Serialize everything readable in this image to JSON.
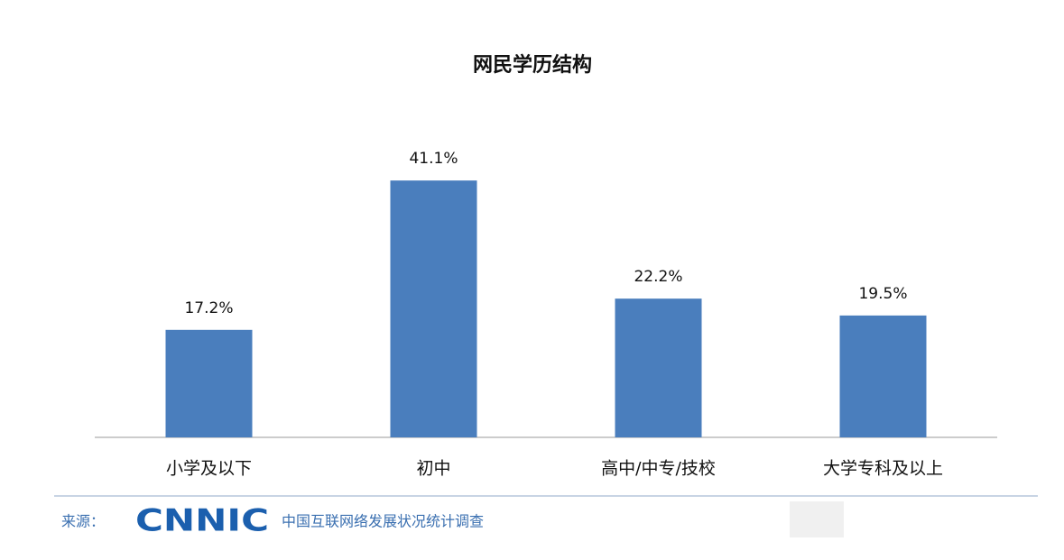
{
  "chart_data": {
    "type": "bar",
    "title": "网民学历结构",
    "categories": [
      "小学及以下",
      "初中",
      "高中/中专/技校",
      "大学专科及以上"
    ],
    "values": [
      17.2,
      41.1,
      22.2,
      19.5
    ],
    "value_labels": [
      "17.2%",
      "41.1%",
      "22.2%",
      "19.5%"
    ],
    "color": "#4a7ebd",
    "source_label": "来源：",
    "source_logo": "CNNIC",
    "source_text": "中国互联网络发展状况统计调查"
  }
}
